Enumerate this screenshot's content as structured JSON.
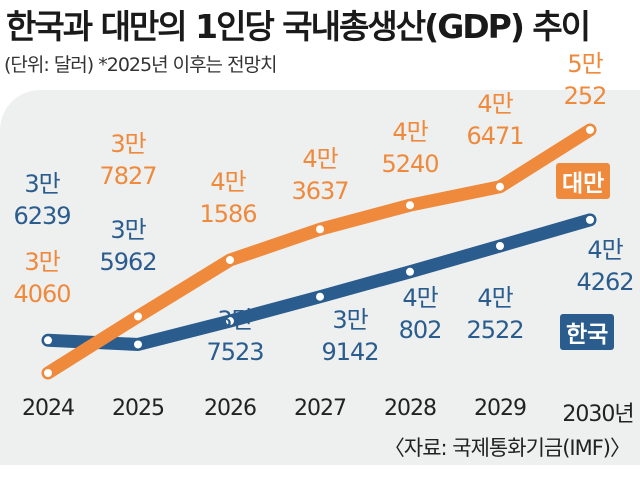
{
  "chart_data": {
    "type": "line",
    "title": "한국과 대만의 1인당 국내총생산(GDP) 추이",
    "subtitle": "(단위: 달러)  *2025년 이후는 전망치",
    "source": "〈자료: 국제통화기금(IMF)〉",
    "x": [
      "2024",
      "2025",
      "2026",
      "2027",
      "2028",
      "2029",
      "2030년"
    ],
    "series": [
      {
        "name": "한국",
        "color": "#2b5c8e",
        "values": [
          36239,
          35962,
          37523,
          39142,
          40802,
          42522,
          44262
        ],
        "labels": [
          [
            "3만",
            "6239"
          ],
          [
            "3만",
            "5962"
          ],
          [
            "3만",
            "7523"
          ],
          [
            "3만",
            "9142"
          ],
          [
            "4만",
            "802"
          ],
          [
            "4만",
            "2522"
          ],
          [
            "4만",
            "4262"
          ]
        ]
      },
      {
        "name": "대만",
        "color": "#ef8a3d",
        "values": [
          34060,
          37827,
          41586,
          43637,
          45240,
          46471,
          50252
        ],
        "labels": [
          [
            "3만",
            "4060"
          ],
          [
            "3만",
            "7827"
          ],
          [
            "4만",
            "1586"
          ],
          [
            "4만",
            "3637"
          ],
          [
            "4만",
            "5240"
          ],
          [
            "4만",
            "6471"
          ],
          [
            "5만",
            "252"
          ]
        ]
      }
    ]
  }
}
